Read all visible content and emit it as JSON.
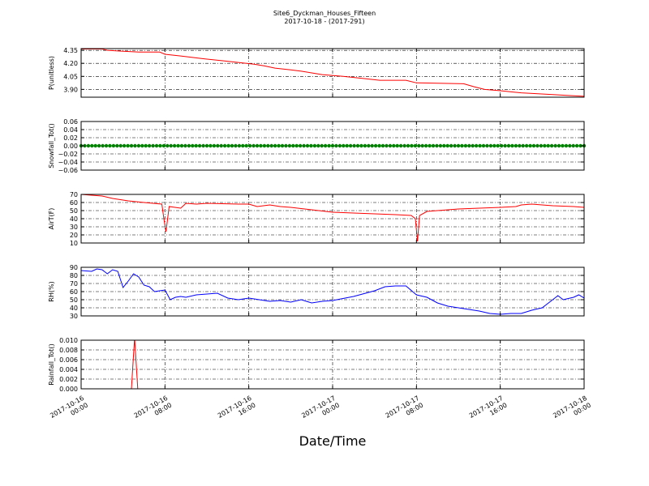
{
  "chart_data": {
    "type": "line",
    "title": "Site6_Dyckman_Houses_Fifteen",
    "subtitle": "2017-10-18 - (2017-291)",
    "xlabel": "Date/Time",
    "x_range_hours": [
      0,
      48
    ],
    "x_ticks": [
      {
        "hour": 0,
        "label": [
          "2017-10-16",
          "00:00"
        ]
      },
      {
        "hour": 8,
        "label": [
          "2017-10-16",
          "08:00"
        ]
      },
      {
        "hour": 16,
        "label": [
          "2017-10-16",
          "16:00"
        ]
      },
      {
        "hour": 24,
        "label": [
          "2017-10-17",
          "00:00"
        ]
      },
      {
        "hour": 32,
        "label": [
          "2017-10-17",
          "08:00"
        ]
      },
      {
        "hour": 40,
        "label": [
          "2017-10-17",
          "16:00"
        ]
      },
      {
        "hour": 48,
        "label": [
          "2017-10-18",
          "00:00"
        ]
      }
    ],
    "grid": true,
    "panels": [
      {
        "ylabel": "P(unitless)",
        "color": "#ff0000",
        "ylim": [
          3.81,
          4.37
        ],
        "yticks": [
          3.9,
          4.05,
          4.2,
          4.35
        ],
        "ytick_labels": [
          "3.90",
          "4.05",
          "4.20",
          "4.35"
        ],
        "x": [
          0,
          2.0,
          2.5,
          4,
          5.5,
          7.5,
          8.0,
          9.5,
          11.5,
          13.5,
          15.0,
          16.5,
          17.5,
          18.5,
          20,
          21,
          22,
          23.0,
          25,
          27,
          28.5,
          31.0,
          32.0,
          36.5,
          37.5,
          38.5,
          40.0,
          42.0,
          45.0,
          46.5,
          48
        ],
        "y": [
          4.365,
          4.365,
          4.35,
          4.34,
          4.33,
          4.33,
          4.305,
          4.285,
          4.255,
          4.23,
          4.21,
          4.19,
          4.17,
          4.145,
          4.125,
          4.11,
          4.09,
          4.07,
          4.05,
          4.025,
          4.005,
          4.005,
          3.975,
          3.965,
          3.93,
          3.9,
          3.885,
          3.86,
          3.84,
          3.83,
          3.82
        ]
      },
      {
        "ylabel": "Snowfall_Tot()",
        "color": "#008000",
        "ylim": [
          -0.06,
          0.06
        ],
        "yticks": [
          -0.06,
          -0.04,
          -0.02,
          0.0,
          0.02,
          0.04,
          0.06
        ],
        "ytick_labels": [
          "−0.06",
          "−0.04",
          "−0.02",
          "0.00",
          "0.02",
          "0.04",
          "0.06"
        ],
        "x": [
          0,
          48
        ],
        "y": [
          0,
          0
        ],
        "markers": true
      },
      {
        "ylabel": "AirT(F)",
        "color": "#ff0000",
        "ylim": [
          10,
          70
        ],
        "yticks": [
          10,
          20,
          30,
          40,
          50,
          60,
          70
        ],
        "ytick_labels": [
          "10",
          "20",
          "30",
          "40",
          "50",
          "60",
          "70"
        ],
        "x": [
          0,
          2.0,
          3.0,
          4.5,
          6.0,
          7.7,
          7.9,
          8.1,
          8.4,
          9.5,
          10.0,
          11.0,
          12.0,
          15.0,
          16.0,
          16.8,
          18.0,
          19.0,
          20.0,
          22.0,
          24.0,
          26.0,
          28.0,
          30.0,
          31.5,
          31.9,
          32.1,
          32.3,
          33.0,
          34.0,
          35.0,
          36.0,
          38.0,
          40.0,
          41.5,
          42.0,
          43.0,
          45.0,
          47.0,
          48.0
        ],
        "y": [
          70,
          68,
          65,
          62,
          60,
          58,
          40,
          24,
          55,
          53,
          59,
          58,
          59,
          58,
          58,
          55,
          57,
          55,
          54,
          51,
          48,
          47,
          46,
          45,
          44,
          40,
          12,
          44,
          49,
          50,
          51,
          52,
          53,
          54,
          55,
          57,
          58,
          56,
          55,
          54
        ]
      },
      {
        "ylabel": "RH(%)",
        "color": "#0000ff",
        "ylim": [
          30,
          90
        ],
        "yticks": [
          30,
          40,
          50,
          60,
          70,
          80,
          90
        ],
        "ytick_labels": [
          "30",
          "40",
          "50",
          "60",
          "70",
          "80",
          "90"
        ],
        "x": [
          0,
          1.0,
          1.5,
          2.0,
          2.5,
          3.0,
          3.5,
          4.0,
          4.5,
          5.0,
          5.5,
          6.0,
          6.5,
          7.0,
          7.5,
          8.0,
          8.5,
          9.0,
          9.5,
          10.0,
          11.0,
          12.0,
          13.0,
          14.0,
          15.0,
          16.0,
          17.0,
          18.0,
          19.0,
          20.0,
          21.0,
          22.0,
          23.0,
          24.0,
          26.0,
          28.0,
          29.0,
          30.0,
          31.0,
          32.0,
          33.0,
          34.0,
          35.0,
          36.0,
          37.0,
          38.0,
          39.0,
          40.0,
          41.0,
          42.0,
          43.0,
          44.0,
          45.0,
          45.5,
          46.0,
          47.0,
          47.5,
          48.0
        ],
        "y": [
          86,
          85,
          88,
          87,
          82,
          87,
          85,
          65,
          73,
          82,
          78,
          68,
          66,
          60,
          61,
          62,
          50,
          53,
          54,
          53,
          56,
          57,
          58,
          52,
          50,
          52,
          50,
          48,
          49,
          47,
          50,
          46,
          48,
          49,
          54,
          61,
          66,
          67,
          67,
          56,
          53,
          46,
          42,
          40,
          38,
          36,
          33,
          32,
          33,
          33,
          37,
          40,
          50,
          55,
          50,
          53,
          56,
          52
        ]
      },
      {
        "ylabel": "Rainfall_Tot()",
        "color": "#ff0000",
        "ylim": [
          0,
          0.01
        ],
        "yticks": [
          0.0,
          0.002,
          0.004,
          0.006,
          0.008,
          0.01
        ],
        "ytick_labels": [
          "0.000",
          "0.002",
          "0.004",
          "0.006",
          "0.008",
          "0.010"
        ],
        "x": [
          0,
          4.8,
          5.1,
          5.4,
          48
        ],
        "y": [
          0,
          0,
          0.0105,
          0,
          0
        ]
      }
    ]
  }
}
